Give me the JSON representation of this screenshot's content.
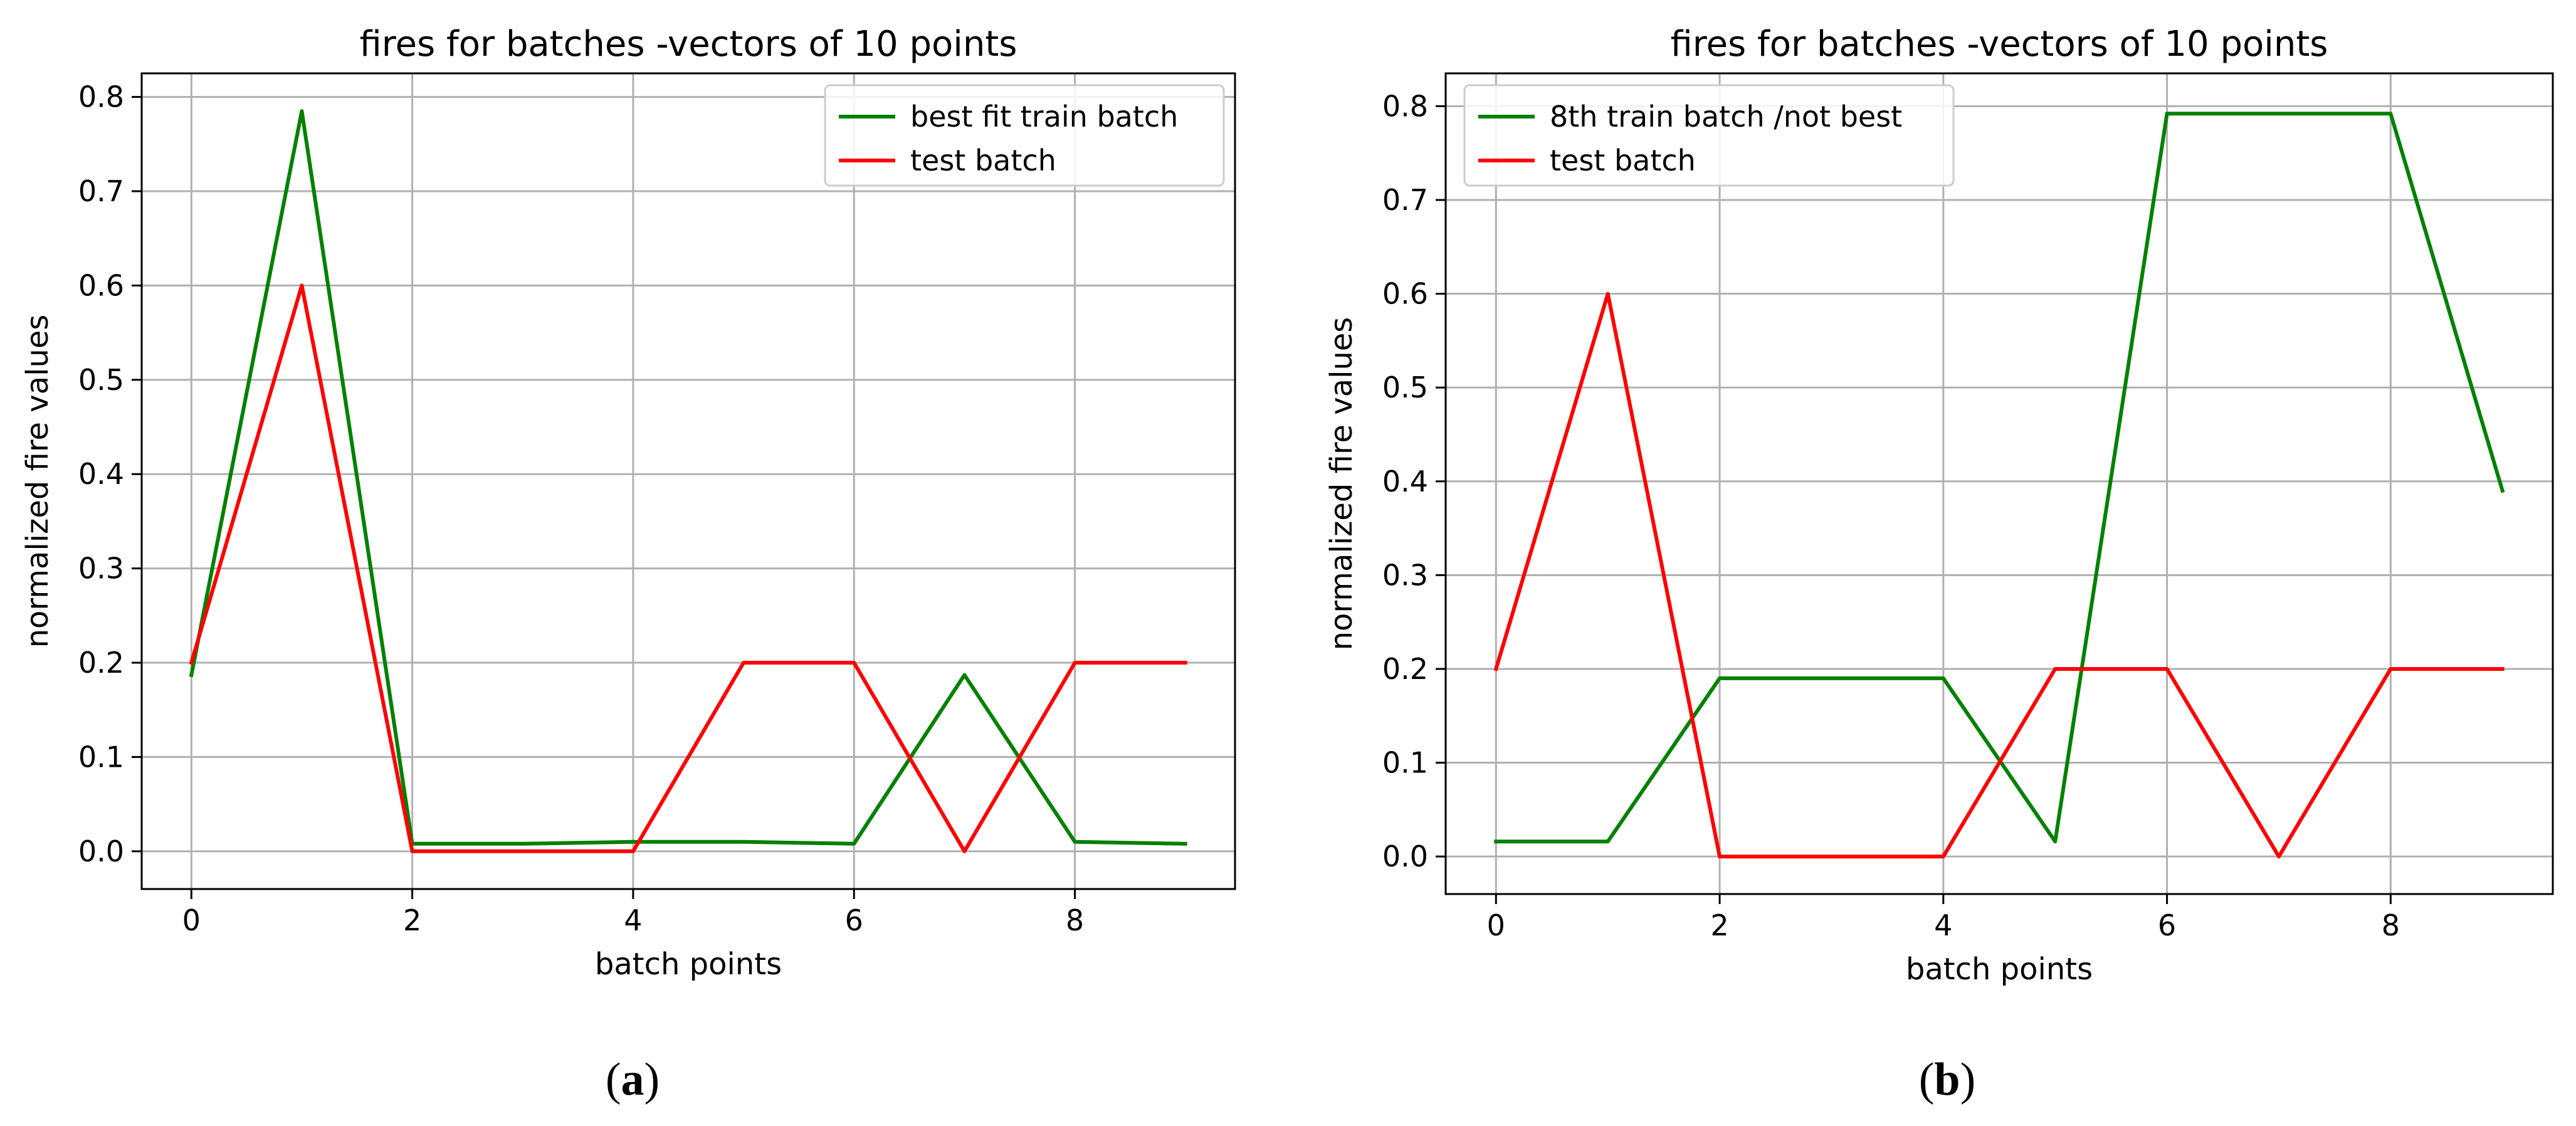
{
  "chart_data": [
    {
      "type": "line",
      "caption": "a",
      "title": "fires for batches -vectors of 10 points",
      "xlabel": "batch points",
      "ylabel": "normalized fire values",
      "xlim": [
        -0.45,
        9.45
      ],
      "ylim": [
        -0.04,
        0.825
      ],
      "xticks": [
        0,
        2,
        4,
        6,
        8
      ],
      "yticks": [
        0.0,
        0.1,
        0.2,
        0.3,
        0.4,
        0.5,
        0.6,
        0.7,
        0.8
      ],
      "ytick_labels": [
        "0.0",
        "0.1",
        "0.2",
        "0.3",
        "0.4",
        "0.5",
        "0.6",
        "0.7",
        "0.8"
      ],
      "grid": true,
      "legend_position": "top-right",
      "x": [
        0,
        1,
        2,
        3,
        4,
        5,
        6,
        7,
        8,
        9
      ],
      "series": [
        {
          "name": "best fit train batch",
          "color": "#008000",
          "values": [
            0.187,
            0.785,
            0.008,
            0.008,
            0.01,
            0.01,
            0.008,
            0.187,
            0.01,
            0.008
          ]
        },
        {
          "name": "test batch",
          "color": "#ff0000",
          "values": [
            0.2,
            0.6,
            0.0,
            0.0,
            0.0,
            0.2,
            0.2,
            0.0,
            0.2,
            0.2
          ]
        }
      ]
    },
    {
      "type": "line",
      "caption": "b",
      "title": "fires for batches -vectors of 10 points",
      "xlabel": "batch points",
      "ylabel": "normalized fire values",
      "xlim": [
        -0.45,
        9.45
      ],
      "ylim": [
        -0.04,
        0.835
      ],
      "xticks": [
        0,
        2,
        4,
        6,
        8
      ],
      "yticks": [
        0.0,
        0.1,
        0.2,
        0.3,
        0.4,
        0.5,
        0.6,
        0.7,
        0.8
      ],
      "ytick_labels": [
        "0.0",
        "0.1",
        "0.2",
        "0.3",
        "0.4",
        "0.5",
        "0.6",
        "0.7",
        "0.8"
      ],
      "grid": true,
      "legend_position": "top-left",
      "x": [
        0,
        1,
        2,
        3,
        4,
        5,
        6,
        7,
        8,
        9
      ],
      "series": [
        {
          "name": "8th train batch /not best",
          "color": "#008000",
          "values": [
            0.016,
            0.016,
            0.19,
            0.19,
            0.19,
            0.016,
            0.792,
            0.792,
            0.792,
            0.39
          ]
        },
        {
          "name": "test batch",
          "color": "#ff0000",
          "values": [
            0.2,
            0.6,
            0.0,
            0.0,
            0.0,
            0.2,
            0.2,
            0.0,
            0.2,
            0.2
          ]
        }
      ]
    }
  ]
}
